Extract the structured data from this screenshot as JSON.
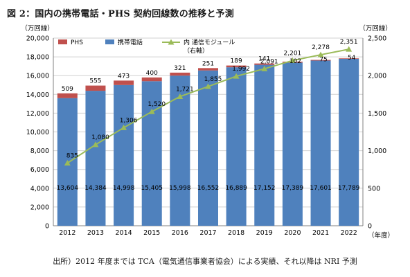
{
  "title": "図 2：国内の携帯電話・PHS 契約回線数の推移と予測",
  "source": "出所）2012 年度までは TCA（電気通信事業者協会）による実績、それ以降は NRI 予測",
  "colors": {
    "phs": "#c0504d",
    "mobile": "#4f81bd",
    "line": "#9bbb59"
  },
  "chart_data": {
    "type": "bar",
    "stacked": true,
    "categories": [
      "2012",
      "2013",
      "2014",
      "2015",
      "2016",
      "2017",
      "2018",
      "2019",
      "2020",
      "2021",
      "2022"
    ],
    "left_axis_unit": "（万回線）",
    "right_axis_unit": "（万回線）",
    "x_axis_unit": "（年度）",
    "ylim_left": [
      0,
      20000
    ],
    "yticks_left": [
      "0",
      "2,000",
      "4,000",
      "6,000",
      "8,000",
      "10,000",
      "12,000",
      "14,000",
      "16,000",
      "18,000",
      "20,000"
    ],
    "ylim_right": [
      0,
      2500
    ],
    "yticks_right": [
      "0",
      "500",
      "1,000",
      "1,500",
      "2,000",
      "2,500"
    ],
    "series": [
      {
        "name": "携帯電話",
        "type": "bar",
        "axis": "left",
        "values": [
          13604,
          14384,
          14998,
          15405,
          15998,
          16552,
          16889,
          17152,
          17389,
          17601,
          17789
        ],
        "labels": [
          "13,604",
          "14,384",
          "14,998",
          "15,405",
          "15,998",
          "16,552",
          "16,889",
          "17,152",
          "17,389",
          "17,601",
          "17,789"
        ]
      },
      {
        "name": "PHS",
        "type": "bar",
        "axis": "left",
        "values": [
          509,
          555,
          473,
          400,
          321,
          251,
          189,
          141,
          102,
          75,
          54
        ],
        "labels": [
          "509",
          "555",
          "473",
          "400",
          "321",
          "251",
          "189",
          "141",
          "102",
          "75",
          "54"
        ]
      },
      {
        "name": "内 通信モジュール",
        "name_sub": "（右軸）",
        "type": "line",
        "axis": "right",
        "values": [
          835,
          1080,
          1306,
          1520,
          1721,
          1855,
          1992,
          2091,
          2201,
          2278,
          2351
        ],
        "labels": [
          "835",
          "1,080",
          "1,306",
          "1,520",
          "1,721",
          "1,855",
          "1,992",
          "2,091",
          "2,201",
          "2,278",
          "2,351"
        ]
      }
    ],
    "legend": {
      "position": "top-left",
      "items": [
        "PHS",
        "携帯電話",
        "内 通信モジュール"
      ]
    },
    "grid": true
  }
}
